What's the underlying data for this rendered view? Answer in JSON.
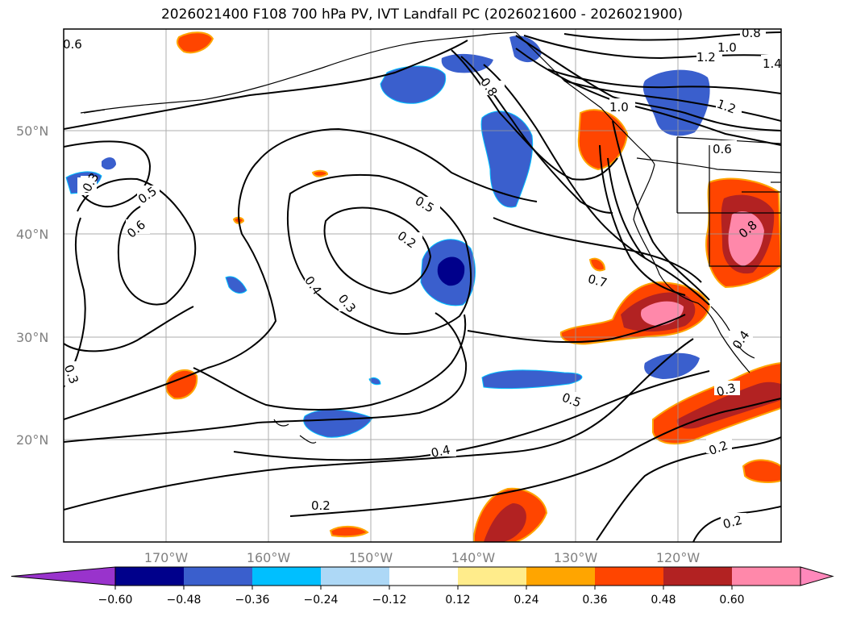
{
  "title": "2026021400 F108 700 hPa PV, IVT Landfall PC (2026021600 - 2026021900)",
  "lat_labels": [
    "50°N",
    "40°N",
    "30°N",
    "20°N"
  ],
  "lon_labels": [
    "170°W",
    "160°W",
    "150°W",
    "140°W",
    "130°W",
    "120°W"
  ],
  "contour_labels": [
    "0.6",
    "0.3",
    "0.5",
    "0.6",
    "0.4",
    "0.3",
    "0.2",
    "0.5",
    "0.8",
    "1.0",
    "1.2",
    "1.0",
    "1.2",
    "1.4",
    "0.8",
    "0.6",
    "0.7",
    "0.4",
    "0.5",
    "0.4",
    "0.2",
    "0.3",
    "0.2",
    "0.2",
    "0.3",
    "0.3",
    "0.8"
  ],
  "colorbar": {
    "ticks": [
      "−0.60",
      "−0.48",
      "−0.36",
      "−0.24",
      "−0.12",
      "0.12",
      "0.24",
      "0.36",
      "0.48",
      "0.60"
    ],
    "colors": [
      "#9933cc",
      "#00008b",
      "#3a5fcd",
      "#00bfff",
      "#add8f6",
      "#ffffff",
      "#ffec8b",
      "#ffa500",
      "#ff4500",
      "#b22222",
      "#ff88aa",
      "#ff88bb"
    ]
  }
}
